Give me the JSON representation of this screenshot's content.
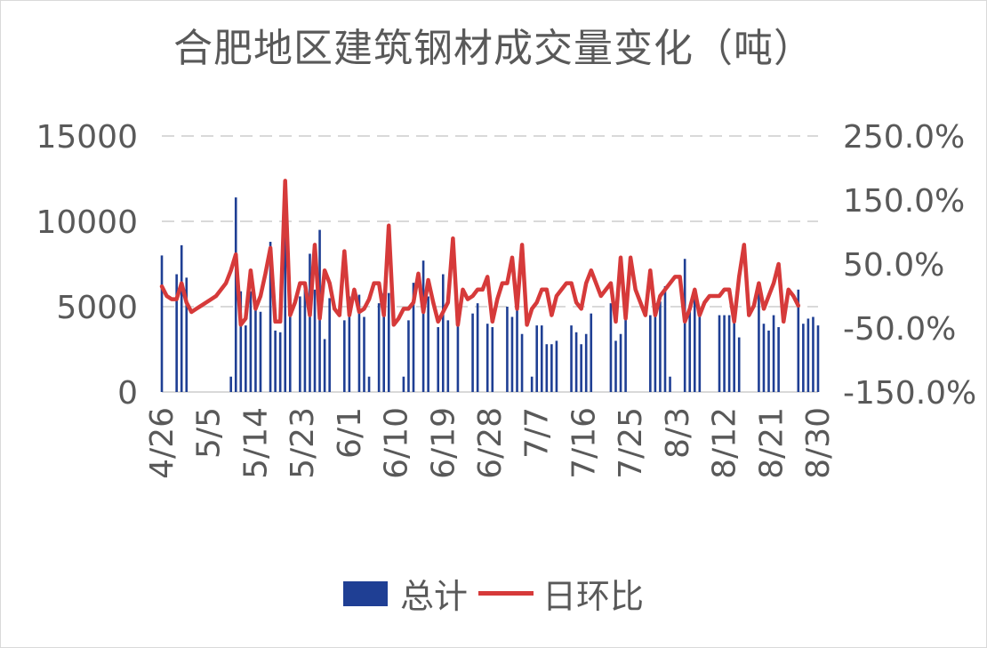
{
  "chart_data": {
    "type": "bar",
    "title": "合肥地区建筑钢材成交量变化（吨）",
    "x_tick_labels": [
      "4/26",
      "5/5",
      "5/14",
      "5/23",
      "6/1",
      "6/10",
      "6/19",
      "6/28",
      "7/7",
      "7/16",
      "7/25",
      "8/3",
      "8/12",
      "8/21",
      "8/30"
    ],
    "left_axis": {
      "ticks": [
        "0",
        "5000",
        "10000",
        "15000"
      ],
      "range": [
        0,
        15000
      ]
    },
    "right_axis": {
      "ticks": [
        "-150.0%",
        "-50.0%",
        "50.0%",
        "150.0%",
        "250.0%"
      ],
      "range": [
        -150,
        250
      ]
    },
    "grid": "dashed horizontal",
    "legend_position": "bottom",
    "series": [
      {
        "name": "总计",
        "type": "bar",
        "axis": "left",
        "color": "#1f3f94",
        "values": [
          8000,
          0,
          0,
          6900,
          8600,
          6700,
          0,
          0,
          0,
          0,
          0,
          0,
          0,
          0,
          900,
          11400,
          5900,
          3900,
          5900,
          4900,
          4700,
          0,
          8800,
          3600,
          3500,
          9800,
          5700,
          0,
          5600,
          6000,
          8100,
          6000,
          9500,
          3100,
          5500,
          0,
          0,
          4200,
          5600,
          0,
          5700,
          4400,
          900,
          0,
          5200,
          5800,
          5800,
          0,
          0,
          900,
          4200,
          6400,
          0,
          7700,
          5600,
          0,
          3800,
          6900,
          4200,
          0,
          4100,
          0,
          0,
          4600,
          5200,
          0,
          4000,
          3800,
          0,
          0,
          5000,
          4400,
          6000,
          3400,
          0,
          900,
          3900,
          3900,
          2800,
          2800,
          3000,
          0,
          0,
          3900,
          3500,
          2800,
          3400,
          4600,
          0,
          0,
          0,
          5200,
          3000,
          3400,
          5500,
          0,
          0,
          0,
          0,
          4500,
          5200,
          5300,
          6200,
          900,
          0,
          0,
          7800,
          4800,
          5500,
          4500,
          0,
          0,
          0,
          4500,
          4500,
          4500,
          4700,
          3200,
          0,
          0,
          0,
          6100,
          4000,
          3600,
          4500,
          3800,
          0,
          0,
          0,
          6000,
          4000,
          4300,
          4400,
          3900
        ]
      },
      {
        "name": "日环比",
        "type": "line",
        "axis": "right",
        "color": "#d63a3a",
        "values": [
          15,
          0,
          -5,
          -5,
          20,
          -10,
          -25,
          -20,
          -15,
          -10,
          -5,
          0,
          10,
          20,
          40,
          65,
          -45,
          -35,
          40,
          -20,
          0,
          35,
          75,
          -40,
          -40,
          180,
          -30,
          -10,
          20,
          20,
          -30,
          80,
          -35,
          40,
          20,
          -20,
          -30,
          70,
          -30,
          10,
          -25,
          -20,
          -5,
          20,
          20,
          -30,
          110,
          -45,
          -35,
          -20,
          -20,
          -10,
          35,
          -25,
          25,
          -10,
          -40,
          -25,
          -10,
          90,
          -45,
          10,
          -5,
          0,
          10,
          10,
          30,
          -40,
          -5,
          20,
          20,
          60,
          -20,
          80,
          -45,
          -20,
          -10,
          10,
          10,
          -30,
          0,
          10,
          20,
          20,
          -10,
          -20,
          20,
          40,
          20,
          0,
          10,
          20,
          -40,
          60,
          -35,
          60,
          10,
          -10,
          -30,
          40,
          -30,
          0,
          10,
          20,
          30,
          30,
          -40,
          -20,
          10,
          -30,
          -10,
          0,
          0,
          0,
          10,
          10,
          -40,
          30,
          80,
          -30,
          -15,
          20,
          -20,
          0,
          20,
          50,
          -40,
          10,
          0,
          -15
        ]
      }
    ]
  },
  "legend": {
    "bar_label": "总计",
    "line_label": "日环比"
  }
}
